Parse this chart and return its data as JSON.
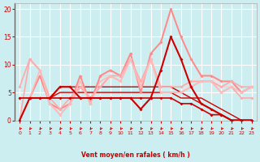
{
  "bg_color": "#cceef0",
  "grid_color": "#ffffff",
  "x_ticks": [
    0,
    1,
    2,
    3,
    4,
    5,
    6,
    7,
    8,
    9,
    10,
    11,
    12,
    13,
    14,
    15,
    16,
    17,
    18,
    19,
    20,
    21,
    22,
    23
  ],
  "ylim": [
    0,
    21
  ],
  "yticks": [
    0,
    5,
    10,
    15,
    20
  ],
  "xlabel": "Vent moyen/en rafales ( km/h )",
  "xlabel_color": "#cc0000",
  "tick_color": "#cc0000",
  "lines": [
    {
      "x": [
        0,
        1,
        2,
        3,
        4,
        5,
        6,
        7,
        8,
        9,
        10,
        11,
        12,
        13,
        14,
        15,
        16,
        17,
        18,
        19,
        20,
        21,
        22,
        23
      ],
      "y": [
        4,
        4,
        4,
        4,
        4,
        4,
        4,
        4,
        4,
        4,
        4,
        4,
        4,
        4,
        4,
        4,
        3,
        3,
        2,
        1,
        1,
        0,
        0,
        0
      ],
      "color": "#cc0000",
      "lw": 1.2,
      "marker": "D",
      "ms": 2.0,
      "zorder": 5
    },
    {
      "x": [
        0,
        1,
        2,
        3,
        4,
        5,
        6,
        7,
        8,
        9,
        10,
        11,
        12,
        13,
        14,
        15,
        16,
        17,
        18,
        19,
        20,
        21,
        22,
        23
      ],
      "y": [
        0,
        4,
        4,
        4,
        6,
        6,
        4,
        4,
        4,
        4,
        4,
        4,
        2,
        4,
        9,
        15,
        11,
        6,
        3,
        2,
        1,
        0,
        0,
        0
      ],
      "color": "#cc0000",
      "lw": 1.5,
      "marker": "D",
      "ms": 2.0,
      "zorder": 6
    },
    {
      "x": [
        0,
        1,
        2,
        3,
        4,
        5,
        6,
        7,
        8,
        9,
        10,
        11,
        12,
        13,
        14,
        15,
        16,
        17,
        18,
        19,
        20,
        21,
        22,
        23
      ],
      "y": [
        4,
        4,
        4,
        4,
        6,
        6,
        6,
        6,
        6,
        6,
        6,
        6,
        6,
        6,
        6,
        6,
        5,
        4,
        4,
        3,
        2,
        1,
        0,
        0
      ],
      "color": "#cc0000",
      "lw": 1.0,
      "marker": null,
      "ms": 0,
      "zorder": 3
    },
    {
      "x": [
        0,
        1,
        2,
        3,
        4,
        5,
        6,
        7,
        8,
        9,
        10,
        11,
        12,
        13,
        14,
        15,
        16,
        17,
        18,
        19,
        20,
        21,
        22,
        23
      ],
      "y": [
        4,
        4,
        4,
        4,
        5,
        5,
        5,
        5,
        5,
        5,
        5,
        5,
        5,
        5,
        5,
        5,
        4,
        4,
        3,
        2,
        1,
        0,
        0,
        0
      ],
      "color": "#cc0000",
      "lw": 1.0,
      "marker": null,
      "ms": 0,
      "zorder": 3
    },
    {
      "x": [
        0,
        1,
        2,
        3,
        4,
        5,
        6,
        7,
        8,
        9,
        10,
        11,
        12,
        13,
        14,
        15,
        16,
        17,
        18,
        19,
        20,
        21,
        22,
        23
      ],
      "y": [
        4,
        4,
        8,
        3,
        2,
        3,
        8,
        3,
        8,
        9,
        8,
        12,
        5,
        12,
        14,
        20,
        15,
        11,
        8,
        8,
        7,
        7,
        5,
        6
      ],
      "color": "#ff8888",
      "lw": 1.4,
      "marker": "D",
      "ms": 2.0,
      "zorder": 4
    },
    {
      "x": [
        0,
        1,
        2,
        3,
        4,
        5,
        6,
        7,
        8,
        9,
        10,
        11,
        12,
        13,
        14,
        15,
        16,
        17,
        18,
        19,
        20,
        21,
        22,
        23
      ],
      "y": [
        6,
        11,
        9,
        4,
        2,
        4,
        6,
        4,
        6,
        8,
        8,
        11,
        7,
        11,
        6,
        6,
        6,
        7,
        7,
        7,
        6,
        7,
        6,
        6
      ],
      "color": "#ffaaaa",
      "lw": 1.2,
      "marker": "D",
      "ms": 2.0,
      "zorder": 4
    },
    {
      "x": [
        0,
        1,
        2,
        3,
        4,
        5,
        6,
        7,
        8,
        9,
        10,
        11,
        12,
        13,
        14,
        15,
        16,
        17,
        18,
        19,
        20,
        21,
        22,
        23
      ],
      "y": [
        0,
        11,
        9,
        3,
        1,
        3,
        6,
        4,
        6,
        8,
        7,
        11,
        6,
        11,
        5,
        5,
        5,
        6,
        7,
        7,
        5,
        6,
        4,
        4
      ],
      "color": "#ffaaaa",
      "lw": 1.2,
      "marker": "D",
      "ms": 2.0,
      "zorder": 4
    },
    {
      "x": [
        0,
        1,
        2,
        3,
        4,
        5,
        6,
        7,
        8,
        9,
        10,
        11,
        12,
        13,
        14,
        15,
        16,
        17,
        18,
        19,
        20,
        21,
        22,
        23
      ],
      "y": [
        0,
        4,
        9,
        3,
        1,
        3,
        7,
        3,
        7,
        8,
        7,
        11,
        6,
        11,
        5,
        5,
        5,
        6,
        7,
        7,
        5,
        6,
        5,
        6
      ],
      "color": "#ffbbbb",
      "lw": 1.1,
      "marker": "D",
      "ms": 1.8,
      "zorder": 4
    },
    {
      "x": [
        0,
        1,
        2,
        3,
        4,
        5,
        6,
        7,
        8,
        9,
        10,
        11,
        12,
        13,
        14,
        15,
        16,
        17,
        18,
        19,
        20,
        21,
        22,
        23
      ],
      "y": [
        0,
        4,
        9,
        3,
        2,
        3,
        7,
        3,
        8,
        8,
        7,
        12,
        6,
        11,
        5,
        5,
        5,
        6,
        7,
        7,
        6,
        6,
        5,
        6
      ],
      "color": "#ffcccc",
      "lw": 1.0,
      "marker": null,
      "ms": 0,
      "zorder": 3
    },
    {
      "x": [
        0,
        1,
        2,
        3,
        4,
        5,
        6,
        7,
        8,
        9,
        10,
        11,
        12,
        13,
        14,
        15,
        16,
        17,
        18,
        19,
        20,
        21,
        22,
        23
      ],
      "y": [
        0,
        4,
        8,
        3,
        1,
        3,
        8,
        3,
        8,
        9,
        8,
        12,
        5,
        12,
        5,
        5,
        5,
        7,
        8,
        8,
        6,
        6,
        5,
        6
      ],
      "color": "#ffdddd",
      "lw": 1.0,
      "marker": null,
      "ms": 0,
      "zorder": 2
    }
  ],
  "arrow_color": "#cc0000"
}
